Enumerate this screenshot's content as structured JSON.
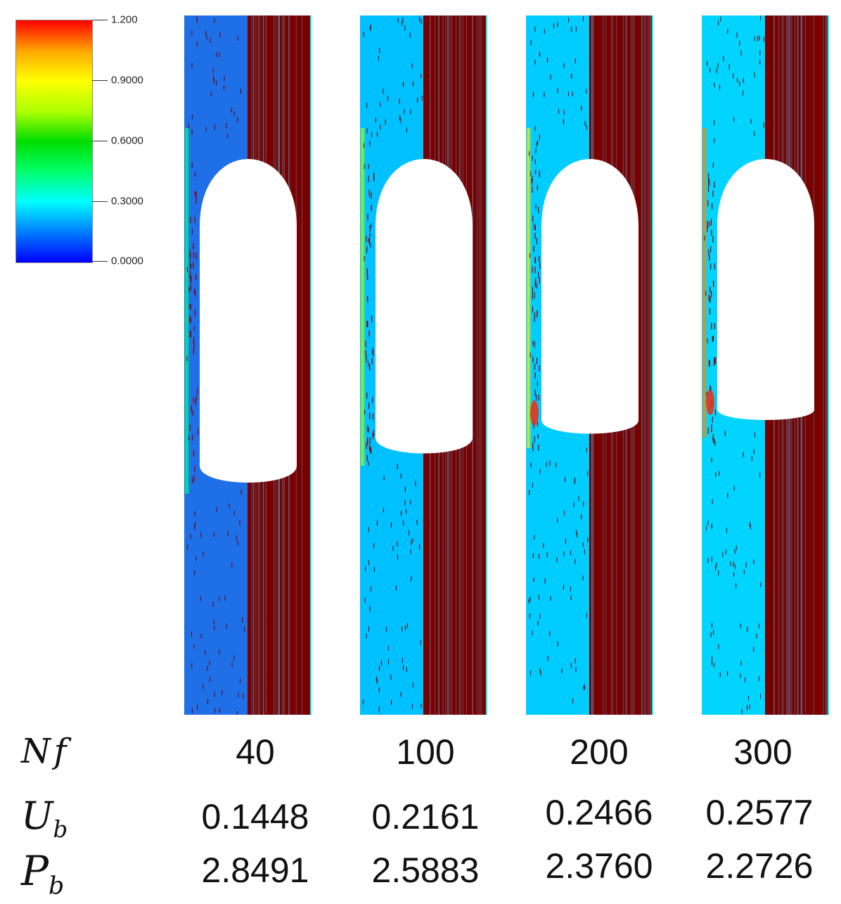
{
  "colorbar": {
    "labels": [
      "1.200",
      "0.9000",
      "0.6000",
      "0.3000",
      "0.0000"
    ]
  },
  "rows": {
    "nf": {
      "symbol": "N",
      "symbol2": "f"
    },
    "ub": {
      "symbol": "U",
      "sub": "b"
    },
    "pb": {
      "symbol": "P",
      "sub": "b"
    }
  },
  "cases": [
    {
      "nf": "40",
      "ub": "0.1448",
      "pb": "2.8491"
    },
    {
      "nf": "100",
      "ub": "0.2161",
      "pb": "2.5883"
    },
    {
      "nf": "200",
      "ub": "0.2466",
      "pb": "2.3760"
    },
    {
      "nf": "300",
      "ub": "0.2577",
      "pb": "2.2726"
    }
  ],
  "colors": {
    "stream_red": "#7a0000",
    "field_blue_dark": "#1f6fe6",
    "field_blue_light": "#00c0ff"
  }
}
